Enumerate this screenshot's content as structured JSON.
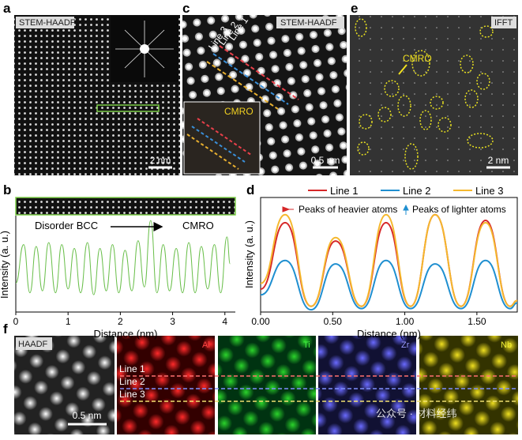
{
  "panel_labels": [
    "a",
    "b",
    "c",
    "d",
    "e",
    "f"
  ],
  "panel_a": {
    "label": "STEM-HAADF",
    "scale_bar": "2 nm"
  },
  "panel_c": {
    "label": "STEM-HAADF",
    "lines": [
      "Line 1",
      "Line 2",
      "Line 3"
    ],
    "inset_label": "CMRO",
    "scale_bar": "0.5 nm"
  },
  "panel_e": {
    "label": "IFFT",
    "annotation": "CMRO",
    "scale_bar": "2 nm"
  },
  "panel_f": {
    "maps": [
      "HAADF",
      "Al",
      "Ti",
      "Zr",
      "Nb"
    ],
    "lines": [
      "Line 1",
      "Line 2",
      "Line 3"
    ],
    "scale_bar": "0.5 nm",
    "watermark": "公众号 · 材料经纬"
  },
  "chart_data": [
    {
      "type": "line",
      "xlabel": "Distance (nm)",
      "ylabel": "Intensity (a. u.)",
      "annotations": [
        "Disorder BCC",
        "CMRO"
      ],
      "x": [
        0,
        0.15,
        0.27,
        0.39,
        0.51,
        0.63,
        0.76,
        0.88,
        1.0,
        1.12,
        1.24,
        1.37,
        1.49,
        1.61,
        1.73,
        1.85,
        1.97,
        2.09,
        2.22,
        2.34,
        2.46,
        2.58,
        2.7,
        2.82,
        2.94,
        3.07,
        3.19,
        3.31,
        3.43,
        3.55,
        3.67,
        3.8,
        3.92,
        4.04,
        4.1
      ],
      "series": [
        {
          "color": "#6abf4b",
          "values": [
            0.3,
            0.7,
            0.2,
            0.68,
            0.22,
            0.72,
            0.2,
            0.7,
            0.24,
            0.66,
            0.2,
            0.72,
            0.18,
            0.66,
            0.22,
            0.7,
            0.2,
            0.64,
            0.22,
            0.74,
            0.26,
            0.95,
            0.2,
            0.7,
            0.22,
            0.66,
            0.2,
            0.72,
            0.2,
            0.68,
            0.24,
            0.7,
            0.2,
            0.78,
            0.5
          ]
        }
      ],
      "xlim": [
        0,
        4.2
      ],
      "xticks": [
        0,
        1,
        2,
        3,
        4
      ],
      "ylim": [
        0,
        1
      ]
    },
    {
      "type": "line",
      "xlabel": "Distance (nm)",
      "ylabel": "Intensity (a. u.)",
      "annotations": [
        "Peaks of heavier atoms",
        "Peaks of lighter atoms"
      ],
      "x": [
        0,
        0.17,
        0.35,
        0.52,
        0.7,
        0.87,
        1.04,
        1.21,
        1.39,
        1.56,
        1.73,
        1.78
      ],
      "series": [
        {
          "name": "Line 1",
          "color": "#d62728",
          "values": [
            0.2,
            0.78,
            0.05,
            0.62,
            0.05,
            0.78,
            0.05,
            0.85,
            0.05,
            0.8,
            0.05,
            0.1
          ]
        },
        {
          "name": "Line 2",
          "color": "#1f8fd0",
          "values": [
            0.15,
            0.45,
            0.02,
            0.42,
            0.03,
            0.45,
            0.03,
            0.42,
            0.03,
            0.45,
            0.03,
            0.08
          ]
        },
        {
          "name": "Line 3",
          "color": "#f5b82e",
          "values": [
            0.25,
            0.85,
            0.05,
            0.65,
            0.05,
            0.85,
            0.05,
            0.85,
            0.05,
            0.78,
            0.05,
            0.1
          ]
        }
      ],
      "xlim": [
        0,
        1.78
      ],
      "xticks": [
        {
          "value": 0,
          "label": "0.00"
        },
        {
          "value": 0.5,
          "label": "0.50"
        },
        {
          "value": 1,
          "label": "1.00"
        },
        {
          "value": 1.5,
          "label": "1.50"
        }
      ],
      "ylim": [
        0,
        1
      ]
    }
  ]
}
